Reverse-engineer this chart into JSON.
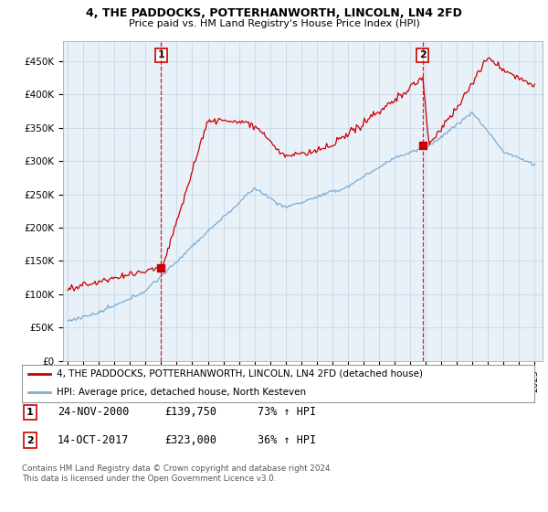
{
  "title": "4, THE PADDOCKS, POTTERHANWORTH, LINCOLN, LN4 2FD",
  "subtitle": "Price paid vs. HM Land Registry's House Price Index (HPI)",
  "ylabel_ticks": [
    "£0",
    "£50K",
    "£100K",
    "£150K",
    "£200K",
    "£250K",
    "£300K",
    "£350K",
    "£400K",
    "£450K"
  ],
  "ytick_values": [
    0,
    50000,
    100000,
    150000,
    200000,
    250000,
    300000,
    350000,
    400000,
    450000
  ],
  "xlim_start": 1994.7,
  "xlim_end": 2025.5,
  "ylim": [
    0,
    480000
  ],
  "red_color": "#cc0000",
  "blue_color": "#7aaed6",
  "chart_bg": "#e8f0f8",
  "marker1_x": 2001.0,
  "marker1_y": 139750,
  "marker2_x": 2017.79,
  "marker2_y": 323000,
  "legend_line1": "4, THE PADDOCKS, POTTERHANWORTH, LINCOLN, LN4 2FD (detached house)",
  "legend_line2": "HPI: Average price, detached house, North Kesteven",
  "table_row1": [
    "1",
    "24-NOV-2000",
    "£139,750",
    "73% ↑ HPI"
  ],
  "table_row2": [
    "2",
    "14-OCT-2017",
    "£323,000",
    "36% ↑ HPI"
  ],
  "footer": "Contains HM Land Registry data © Crown copyright and database right 2024.\nThis data is licensed under the Open Government Licence v3.0.",
  "background_color": "#ffffff",
  "grid_color": "#c8d8e8"
}
